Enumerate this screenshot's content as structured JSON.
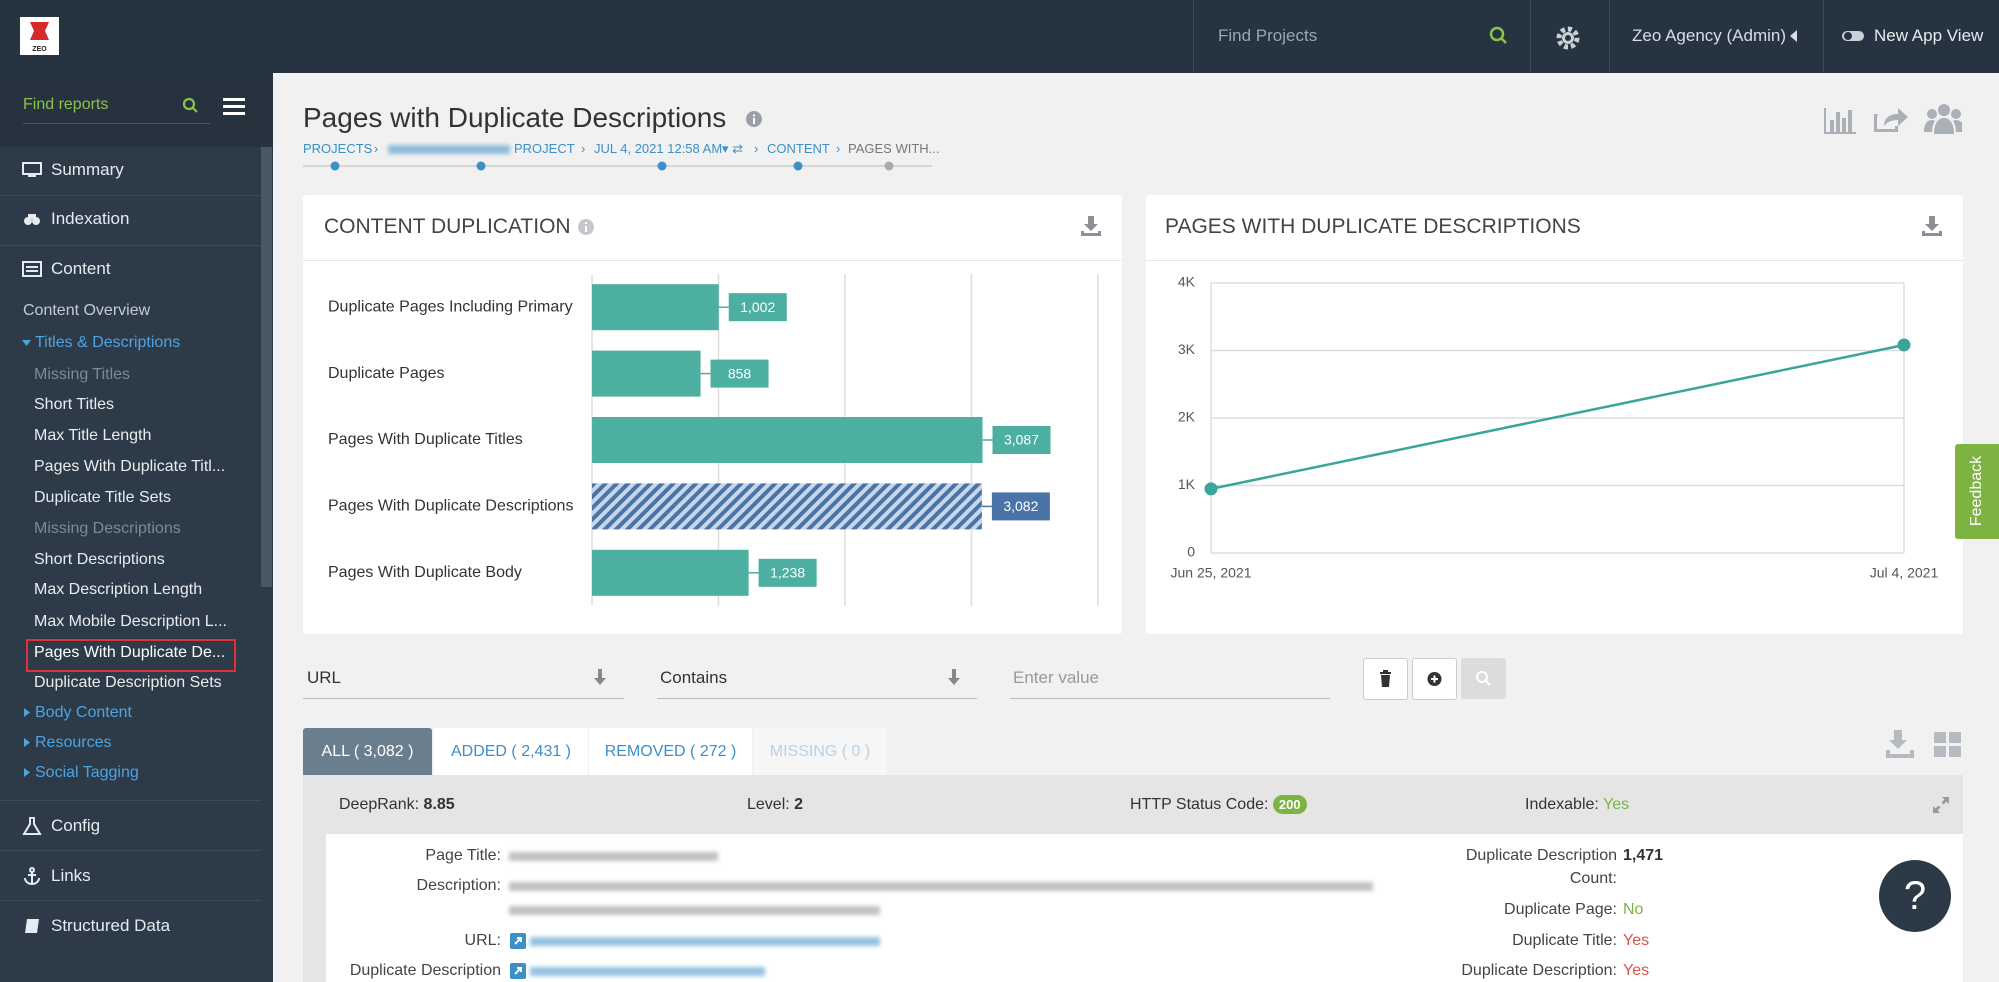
{
  "topbar": {
    "logo": "ZEO",
    "search_placeholder": "Find Projects",
    "account": "Zeo Agency (Admin)",
    "toggle_label": "New App View"
  },
  "sidebar": {
    "search_placeholder": "Find reports",
    "items": [
      "Summary",
      "Indexation",
      "Content",
      "Content Overview",
      "Titles & Descriptions",
      "Missing Titles",
      "Short Titles",
      "Max Title Length",
      "Pages With Duplicate Titl...",
      "Duplicate Title Sets",
      "Missing Descriptions",
      "Short Descriptions",
      "Max Description Length",
      "Max Mobile Description L...",
      "Pages With Duplicate De...",
      "Duplicate Description Sets",
      "Body Content",
      "Resources",
      "Social Tagging",
      "Config",
      "Links",
      "Structured Data"
    ]
  },
  "page": {
    "title": "Pages with Duplicate Descriptions",
    "breadcrumbs": [
      "PROJECTS",
      "PROJECT",
      "JUL 4, 2021 12:58 AM",
      "CONTENT",
      "PAGES WITH..."
    ]
  },
  "chart_data": [
    {
      "type": "hbar",
      "title": "CONTENT DUPLICATION",
      "categories": [
        "Duplicate Pages Including Primary",
        "Duplicate Pages",
        "Pages With Duplicate Titles",
        "Pages With Duplicate Descriptions",
        "Pages With Duplicate Body"
      ],
      "values": [
        1002,
        858,
        3087,
        3082,
        1238
      ],
      "value_labels": [
        "1,002",
        "858",
        "3,087",
        "3,082",
        "1,238"
      ],
      "color": "#4caf9f",
      "highlight": "Pages With Duplicate Descriptions",
      "highlight_color": "#4a73a8",
      "xlim": [
        0,
        4000
      ],
      "xticks": [
        0,
        1000,
        2000,
        3000,
        4000
      ],
      "grid": true
    },
    {
      "type": "line",
      "title": "PAGES WITH DUPLICATE DESCRIPTIONS",
      "x": [
        "Jun 25, 2021",
        "Jul 4, 2021"
      ],
      "values": [
        950,
        3082
      ],
      "color": "#3aa69a",
      "ylim": [
        0,
        4000
      ],
      "yticks": [
        0,
        {
          "value": 1000,
          "label": "1K"
        },
        {
          "value": 2000,
          "label": "2K"
        },
        {
          "value": 3000,
          "label": "3K"
        },
        {
          "value": 4000,
          "label": "4K"
        }
      ],
      "grid": true
    }
  ],
  "filters": {
    "field": "URL",
    "operator": "Contains",
    "value_placeholder": "Enter value"
  },
  "tabs": [
    "ALL ( 3,082 )",
    "ADDED ( 2,431 )",
    "REMOVED ( 272 )",
    "MISSING ( 0 )"
  ],
  "record": {
    "summary": [
      {
        "label": "DeepRank:",
        "value": "8.85"
      },
      {
        "label": "Level:",
        "value": "2"
      },
      {
        "label": "HTTP Status Code:",
        "value": "200"
      },
      {
        "label": "Indexable:",
        "value": "Yes"
      }
    ],
    "details_left": [
      "Page Title:",
      "Description:",
      "URL:",
      "Duplicate Description"
    ],
    "details_right": [
      {
        "label": "Duplicate Description",
        "label2": "Count:",
        "value": "1,471"
      },
      {
        "label": "Duplicate Page:",
        "value": "No"
      },
      {
        "label": "Duplicate Title:",
        "value": "Yes"
      },
      {
        "label": "Duplicate Description:",
        "value": "Yes"
      }
    ]
  },
  "feedback": "Feedback",
  "help": "?"
}
